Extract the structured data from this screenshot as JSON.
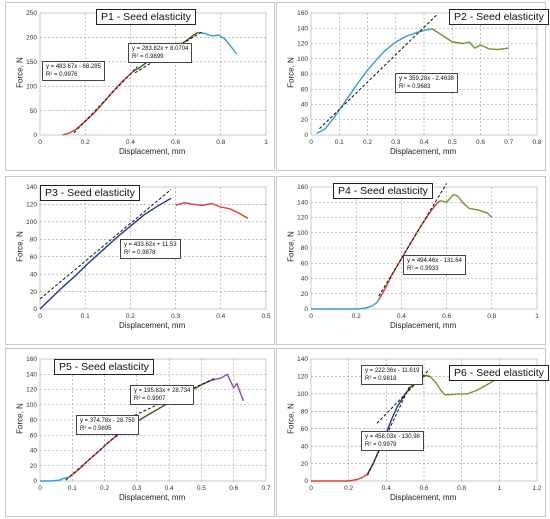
{
  "chart_data": [
    {
      "type": "line",
      "title": "P1 - Seed elasticity",
      "xlabel": "Displacement, mm",
      "ylabel": "Force, N",
      "xlim": [
        0,
        1
      ],
      "ylim": [
        0,
        250
      ],
      "xticks": [
        "0",
        "0.2",
        "0.4",
        "0.6",
        "0.8",
        "1"
      ],
      "yticks": [
        "0",
        "50",
        "100",
        "150",
        "200",
        "250"
      ],
      "series": [
        {
          "color": "#e03c2c",
          "x": [
            0.1,
            0.13,
            0.16,
            0.2,
            0.24,
            0.28,
            0.32,
            0.36,
            0.4,
            0.42
          ],
          "y": [
            0,
            4,
            12,
            28,
            45,
            66,
            88,
            108,
            125,
            133
          ]
        },
        {
          "color": "#3a5f1a",
          "x": [
            0.42,
            0.44,
            0.47,
            0.5,
            0.53,
            0.55,
            0.57,
            0.6,
            0.63,
            0.66,
            0.69,
            0.7
          ],
          "y": [
            133,
            138,
            148,
            155,
            160,
            164,
            168,
            178,
            188,
            198,
            208,
            210
          ]
        },
        {
          "color": "#2b9fd6",
          "x": [
            0.7,
            0.73,
            0.76,
            0.79,
            0.82,
            0.85,
            0.87
          ],
          "y": [
            210,
            208,
            203,
            205,
            196,
            178,
            166
          ]
        }
      ],
      "trendlines": [
        {
          "x": [
            0.15,
            0.43
          ],
          "y": [
            4.3,
            139.7
          ]
        },
        {
          "x": [
            0.42,
            0.72
          ],
          "y": [
            127.3,
            212.4
          ]
        }
      ],
      "annotations": [
        {
          "lines": [
            "y = 483.67x - 68.285",
            "R² = 0.9976"
          ]
        },
        {
          "lines": [
            "y = 283.82x + 8.0704",
            "R² = 0.9899"
          ]
        }
      ]
    },
    {
      "type": "line",
      "title": "P2 - Seed elasticity",
      "xlabel": "Displacement, mm",
      "ylabel": "Force, N",
      "xlim": [
        0,
        0.8
      ],
      "ylim": [
        0,
        160
      ],
      "xticks": [
        "0",
        "0.1",
        "0.2",
        "0.3",
        "0.4",
        "0.5",
        "0.6",
        "0.7",
        "0.8"
      ],
      "yticks": [
        "0",
        "20",
        "40",
        "60",
        "80",
        "100",
        "120",
        "140",
        "160"
      ],
      "series": [
        {
          "color": "#2b9fd6",
          "x": [
            0.02,
            0.05,
            0.08,
            0.11,
            0.14,
            0.17,
            0.2,
            0.23,
            0.26,
            0.3,
            0.34,
            0.38,
            0.41,
            0.43
          ],
          "y": [
            2,
            8,
            22,
            38,
            54,
            70,
            85,
            98,
            110,
            122,
            130,
            135,
            138,
            139
          ]
        },
        {
          "color": "#6a9a2c",
          "x": [
            0.43,
            0.46,
            0.5,
            0.54,
            0.56,
            0.58,
            0.6,
            0.63,
            0.66,
            0.7
          ],
          "y": [
            139,
            132,
            122,
            120,
            122,
            114,
            118,
            113,
            112,
            114
          ]
        }
      ],
      "trendlines": [
        {
          "x": [
            0.03,
            0.45
          ],
          "y": [
            8.3,
            159.2
          ]
        }
      ],
      "annotations": [
        {
          "lines": [
            "y = 359.28x - 2.4638",
            "R² = 0.9683"
          ]
        }
      ]
    },
    {
      "type": "line",
      "title": "P3 - Seed elasticity",
      "xlabel": "Displacement, mm",
      "ylabel": "Force, N",
      "xlim": [
        0,
        0.5
      ],
      "ylim": [
        0,
        140
      ],
      "xticks": [
        "0",
        "0.1",
        "0.2",
        "0.3",
        "0.4",
        "0.5"
      ],
      "yticks": [
        "0",
        "20",
        "40",
        "60",
        "80",
        "100",
        "120",
        "140"
      ],
      "series": [
        {
          "color": "#1f3a93",
          "x": [
            0,
            0.02,
            0.05,
            0.08,
            0.11,
            0.14,
            0.17,
            0.2,
            0.23,
            0.26,
            0.28,
            0.29
          ],
          "y": [
            0,
            10,
            25,
            39,
            54,
            68,
            82,
            95,
            108,
            118,
            124,
            127
          ]
        },
        {
          "color": "#e03c2c",
          "x": [
            0.3,
            0.32,
            0.34,
            0.36,
            0.38,
            0.4,
            0.42,
            0.44,
            0.46
          ],
          "y": [
            119,
            122,
            120,
            119,
            121,
            117,
            115,
            110,
            104
          ]
        }
      ],
      "trendlines": [
        {
          "x": [
            0,
            0.29
          ],
          "y": [
            11.5,
            137.2
          ]
        }
      ],
      "annotations": [
        {
          "lines": [
            "y = 433.62x + 11.53",
            "R² = 0.9878"
          ]
        }
      ]
    },
    {
      "type": "line",
      "title": "P4 - Seed elasticity",
      "xlabel": "Displacement, mm",
      "ylabel": "Force, N",
      "xlim": [
        0,
        1
      ],
      "ylim": [
        0,
        160
      ],
      "xticks": [
        "0",
        "0.2",
        "0.4",
        "0.6",
        "0.8",
        "1"
      ],
      "yticks": [
        "0",
        "20",
        "40",
        "60",
        "80",
        "100",
        "120",
        "140",
        "160"
      ],
      "series": [
        {
          "color": "#2b9fd6",
          "x": [
            0,
            0.1,
            0.2,
            0.24,
            0.27,
            0.29,
            0.3
          ],
          "y": [
            0,
            0,
            0,
            1,
            4,
            8,
            12
          ]
        },
        {
          "color": "#e03c2c",
          "x": [
            0.3,
            0.33,
            0.36,
            0.4,
            0.44,
            0.48,
            0.52,
            0.55,
            0.57
          ],
          "y": [
            12,
            28,
            46,
            66,
            86,
            106,
            124,
            136,
            142
          ]
        },
        {
          "color": "#6a9a2c",
          "x": [
            0.57,
            0.6,
            0.63,
            0.65,
            0.67,
            0.7,
            0.74,
            0.78,
            0.8
          ],
          "y": [
            142,
            140,
            150,
            148,
            140,
            132,
            130,
            126,
            120
          ]
        }
      ],
      "trendlines": [
        {
          "x": [
            0.3,
            0.6
          ],
          "y": [
            16.7,
            164.8
          ]
        }
      ],
      "annotations": [
        {
          "lines": [
            "y = 494.46x - 131.64",
            "R² = 0.9933"
          ]
        }
      ]
    },
    {
      "type": "line",
      "title": "P5 - Seed elasticity",
      "xlabel": "Displacement, mm",
      "ylabel": "Force, N",
      "xlim": [
        0,
        0.7
      ],
      "ylim": [
        0,
        160
      ],
      "xticks": [
        "0",
        "0.1",
        "0.2",
        "0.3",
        "0.4",
        "0.5",
        "0.6",
        "0.7"
      ],
      "yticks": [
        "0",
        "20",
        "40",
        "60",
        "80",
        "100",
        "120",
        "140",
        "160"
      ],
      "series": [
        {
          "color": "#2b9fd6",
          "x": [
            0,
            0.03,
            0.06,
            0.07,
            0.08,
            0.09
          ],
          "y": [
            0,
            0,
            1,
            3,
            4,
            5
          ]
        },
        {
          "color": "#e03c2c",
          "x": [
            0.09,
            0.12,
            0.15,
            0.18,
            0.21,
            0.24,
            0.26
          ],
          "y": [
            5,
            15,
            27,
            38,
            50,
            60,
            67
          ]
        },
        {
          "color": "#3a5f1a",
          "x": [
            0.26,
            0.3,
            0.34,
            0.38,
            0.42,
            0.46,
            0.5,
            0.53
          ],
          "y": [
            67,
            78,
            88,
            98,
            108,
            117,
            126,
            132
          ]
        },
        {
          "color": "#8a4fb3",
          "x": [
            0.53,
            0.56,
            0.58,
            0.6,
            0.61,
            0.62,
            0.63
          ],
          "y": [
            132,
            135,
            140,
            122,
            128,
            116,
            105
          ]
        }
      ],
      "trendlines": [
        {
          "x": [
            0.08,
            0.27
          ],
          "y": [
            1.2,
            72.4
          ]
        },
        {
          "x": [
            0.25,
            0.54
          ],
          "y": [
            77.7,
            134.5
          ]
        }
      ],
      "annotations": [
        {
          "lines": [
            "y = 195.83x + 28.734",
            "R² = 0.9907"
          ]
        },
        {
          "lines": [
            "y = 374.78x - 28.759",
            "R² = 0.9895"
          ]
        }
      ]
    },
    {
      "type": "line",
      "title": "P6 - Seed elasticity",
      "xlabel": "Displacement, mm",
      "ylabel": "Force, N",
      "xlim": [
        0,
        1.2
      ],
      "ylim": [
        0,
        140
      ],
      "xticks": [
        "0",
        "0.2",
        "0.4",
        "0.6",
        "0.8",
        "1",
        "1.2"
      ],
      "yticks": [
        "0",
        "20",
        "40",
        "60",
        "80",
        "100",
        "120",
        "140"
      ],
      "series": [
        {
          "color": "#e03c2c",
          "x": [
            0,
            0.1,
            0.2,
            0.25,
            0.28,
            0.3
          ],
          "y": [
            0,
            0,
            0,
            2,
            5,
            8
          ]
        },
        {
          "color": "#1f3a93",
          "x": [
            0.3,
            0.33,
            0.36,
            0.4,
            0.43,
            0.46,
            0.5
          ],
          "y": [
            8,
            20,
            35,
            55,
            72,
            86,
            100
          ]
        },
        {
          "color": "#3a5f1a",
          "x": [
            0.5,
            0.53,
            0.56,
            0.59,
            0.61,
            0.63
          ],
          "y": [
            100,
            108,
            114,
            119,
            121,
            120
          ]
        },
        {
          "color": "#6a9a2c",
          "x": [
            0.63,
            0.66,
            0.69,
            0.71,
            0.74,
            0.78,
            0.83,
            0.88,
            0.93,
            0.97
          ],
          "y": [
            120,
            114,
            104,
            99,
            99,
            100,
            100,
            104,
            110,
            115
          ]
        }
      ],
      "trendlines": [
        {
          "x": [
            0.3,
            0.56
          ],
          "y": [
            6.4,
            125.5
          ]
        },
        {
          "x": [
            0.35,
            0.63
          ],
          "y": [
            66.2,
            128.2
          ]
        }
      ],
      "annotations": [
        {
          "lines": [
            "y = 222.36x - 11.619",
            "R² = 0.9818"
          ]
        },
        {
          "lines": [
            "y = 458.03x - 130.98",
            "R² = 0.9979"
          ]
        }
      ]
    }
  ]
}
